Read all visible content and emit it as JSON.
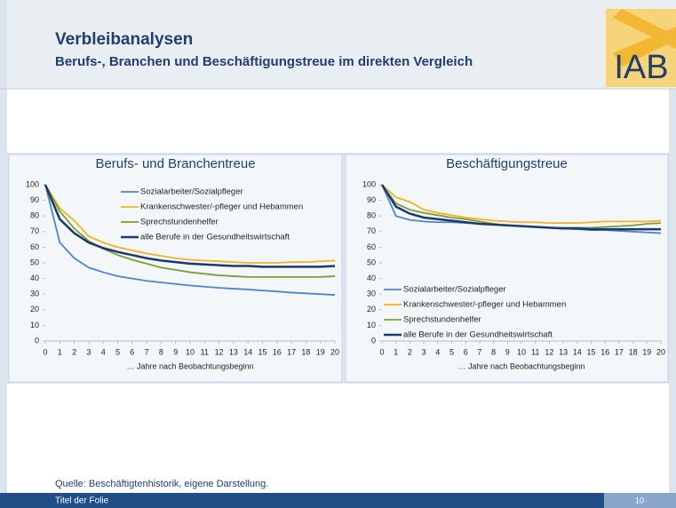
{
  "header": {
    "title": "Verbleibanalysen",
    "subtitle": "Berufs-, Branchen und Beschäftigungstreue im direkten Vergleich",
    "logo": "IAB"
  },
  "chart_data": [
    {
      "type": "line",
      "title": "Berufs- und Branchentreue",
      "x_label": "… Jahre nach Beobachtungsbeginn",
      "x": [
        0,
        1,
        2,
        3,
        4,
        5,
        6,
        7,
        8,
        9,
        10,
        11,
        12,
        13,
        14,
        15,
        16,
        17,
        18,
        19,
        20
      ],
      "xlim": [
        0,
        20
      ],
      "xticks": [
        0,
        1,
        2,
        3,
        4,
        5,
        6,
        7,
        8,
        9,
        10,
        11,
        12,
        13,
        14,
        15,
        16,
        17,
        18,
        19,
        20
      ],
      "ylim": [
        0,
        100
      ],
      "yticks": [
        0,
        10,
        20,
        30,
        40,
        50,
        60,
        70,
        80,
        90,
        100
      ],
      "legend": "upper center",
      "series": [
        {
          "name": "Sozialarbeiter/Sozialpfleger",
          "color": "#4a86c8",
          "values": [
            100,
            63,
            53,
            47,
            44,
            41.5,
            40,
            38.5,
            37.5,
            36.5,
            35.5,
            34.8,
            34,
            33.5,
            33,
            32.3,
            31.7,
            31,
            30.5,
            30,
            29.5
          ]
        },
        {
          "name": "Krankenschwester/-pfleger und Hebammen",
          "color": "#f0b323",
          "values": [
            100,
            85,
            77,
            67,
            63,
            60,
            58,
            56,
            54.5,
            53,
            52,
            51.5,
            51,
            50.5,
            50,
            50,
            50,
            50.5,
            50.5,
            51,
            51.5
          ]
        },
        {
          "name": "Sprechstundenhelfer",
          "color": "#7f9a3a",
          "values": [
            100,
            83,
            72,
            64,
            59,
            55,
            52,
            49.5,
            47,
            45.5,
            44,
            43,
            42,
            41.5,
            41,
            41,
            41,
            41,
            41,
            41,
            41.5
          ]
        },
        {
          "name": "alle Berufe in der Gesundheitswirtschaft",
          "color": "#1a3a6b",
          "values": [
            100,
            78,
            69,
            63,
            59.5,
            57,
            55,
            53,
            51.5,
            50.5,
            49.5,
            49,
            48.5,
            48,
            48,
            47.5,
            47.5,
            47.5,
            47.5,
            47.5,
            48
          ]
        }
      ]
    },
    {
      "type": "line",
      "title": "Beschäftigungstreue",
      "x_label": "… Jahre nach Beobachtungsbeginn",
      "x": [
        0,
        1,
        2,
        3,
        4,
        5,
        6,
        7,
        8,
        9,
        10,
        11,
        12,
        13,
        14,
        15,
        16,
        17,
        18,
        19,
        20
      ],
      "xlim": [
        0,
        20
      ],
      "xticks": [
        0,
        1,
        2,
        3,
        4,
        5,
        6,
        7,
        8,
        9,
        10,
        11,
        12,
        13,
        14,
        15,
        16,
        17,
        18,
        19,
        20
      ],
      "ylim": [
        0,
        100
      ],
      "yticks": [
        0,
        10,
        20,
        30,
        40,
        50,
        60,
        70,
        80,
        90,
        100
      ],
      "legend": "lower left",
      "series": [
        {
          "name": "Sozialarbeiter/Sozialpfleger",
          "color": "#4a86c8",
          "values": [
            100,
            80,
            77.5,
            76.5,
            76,
            76,
            75.5,
            75,
            74.5,
            74,
            73.5,
            73,
            72.5,
            72,
            71.5,
            71,
            71,
            70.5,
            70,
            69.5,
            69
          ]
        },
        {
          "name": "Krankenschwester/-pfleger und Hebammen",
          "color": "#f0b323",
          "values": [
            100,
            92,
            89,
            84,
            82,
            80.5,
            79,
            78,
            77,
            76.5,
            76,
            76,
            75.5,
            75.5,
            75.5,
            76,
            76.5,
            76.5,
            76.5,
            76.5,
            77
          ]
        },
        {
          "name": "Sprechstundenhelfer",
          "color": "#7f9a3a",
          "values": [
            100,
            88,
            84,
            82,
            80.5,
            79,
            78,
            76.5,
            75,
            74,
            73.5,
            73,
            72.5,
            72.5,
            72.5,
            72.5,
            73,
            73.5,
            74,
            75,
            75.5
          ]
        },
        {
          "name": "alle Berufe in der Gesundheitswirtschaft",
          "color": "#1a3a6b",
          "values": [
            100,
            86,
            81.5,
            79,
            78,
            77,
            76,
            75,
            74.5,
            74,
            73.5,
            73,
            72.5,
            72,
            72,
            71.5,
            71.5,
            71.5,
            71.5,
            71.5,
            71.5
          ]
        }
      ]
    }
  ],
  "source": "Quelle: Beschäftigtenhistorik, eigene Darstellung.",
  "footer": {
    "left": "Titel der Folie",
    "page": 10
  }
}
